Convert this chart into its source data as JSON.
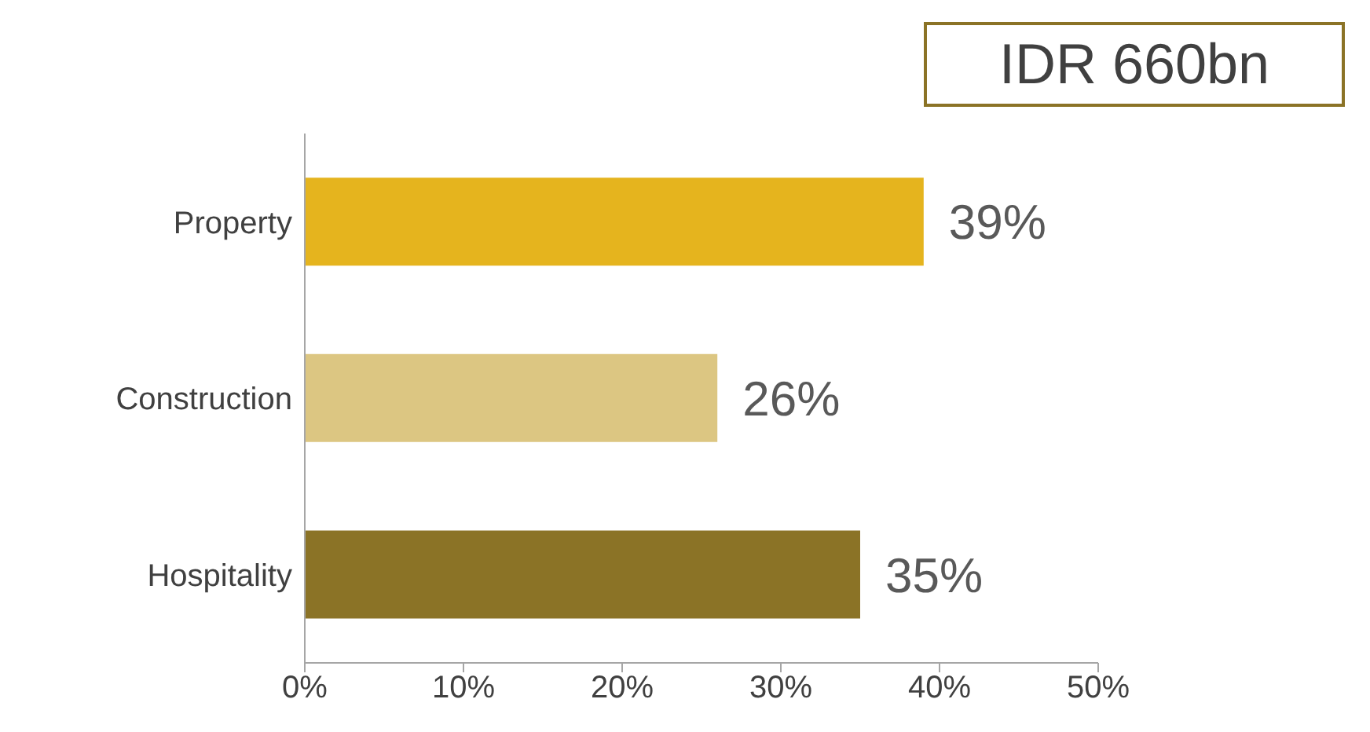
{
  "chart_data": {
    "type": "bar",
    "orientation": "horizontal",
    "title": "IDR 660bn",
    "categories": [
      "Property",
      "Construction",
      "Hospitality"
    ],
    "values": [
      39,
      26,
      35
    ],
    "colors": [
      "#e5b41e",
      "#dcc682",
      "#8b7326"
    ],
    "value_labels": [
      "39%",
      "26%",
      "35%"
    ],
    "xlim": [
      0,
      50
    ],
    "xticks": [
      {
        "value": 0,
        "label": "0%"
      },
      {
        "value": 10,
        "label": "10%"
      },
      {
        "value": 20,
        "label": "20%"
      },
      {
        "value": 30,
        "label": "30%"
      },
      {
        "value": 40,
        "label": "40%"
      },
      {
        "value": 50,
        "label": "50%"
      }
    ],
    "grid": false,
    "legend": false
  }
}
